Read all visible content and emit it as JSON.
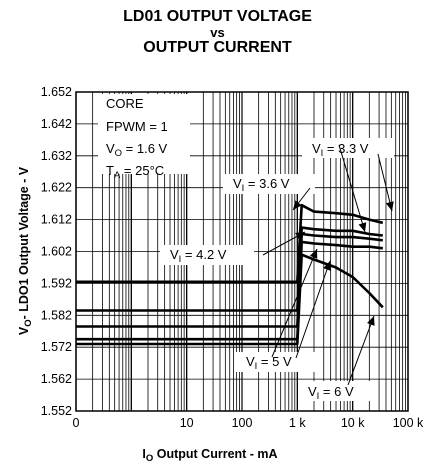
{
  "chart_data": {
    "type": "line",
    "title_line1": "LD01 OUTPUT VOLTAGE",
    "title_line2": "vs",
    "title_line3": "OUTPUT CURRENT",
    "xlabel": {
      "main": "I",
      "sub": "O",
      "rest": " Output Current - mA"
    },
    "ylabel": {
      "main": "V",
      "sub": "O",
      "rest": "- LDO1 Output Voltage - V"
    },
    "x_scale": "log",
    "xlim": [
      0.1,
      100000
    ],
    "ylim": [
      1.552,
      1.652
    ],
    "grid": true,
    "x_ticks": [
      {
        "value": 0.1,
        "label": "0"
      },
      {
        "value": 10,
        "label": "10"
      },
      {
        "value": 100,
        "label": "100"
      },
      {
        "value": 1000,
        "label": "1 k"
      },
      {
        "value": 10000,
        "label": "10 k"
      },
      {
        "value": 100000,
        "label": "100 k"
      }
    ],
    "y_ticks": [
      "1.552",
      "1.562",
      "1.572",
      "1.582",
      "1.592",
      "1.602",
      "1.612",
      "1.622",
      "1.632",
      "1.642",
      "1.652"
    ],
    "conditions": [
      {
        "text": "CORE"
      },
      {
        "text": "FPWM = 1"
      },
      {
        "main": "V",
        "sub": "O",
        "rest": " = 1.6 V"
      },
      {
        "main": "T",
        "sub": "A",
        "rest": " = 25°C"
      }
    ],
    "series": [
      {
        "name": "V_I = 3.3 V",
        "label_main": "V",
        "label_sub": "I",
        "label_rest": " = 3.3 V",
        "x": [
          0.1,
          1,
          10,
          100,
          700,
          1000,
          1200,
          2000,
          5000,
          10000,
          20000,
          35000
        ],
        "y": [
          1.5925,
          1.5925,
          1.5925,
          1.5925,
          1.5925,
          1.5925,
          1.6165,
          1.6145,
          1.614,
          1.6135,
          1.612,
          1.611
        ]
      },
      {
        "name": "V_I = 3.6 V",
        "label_main": "V",
        "label_sub": "I",
        "label_rest": " = 3.6 V",
        "x": [
          0.1,
          1,
          10,
          100,
          700,
          1000,
          1200,
          2000,
          5000,
          10000,
          20000,
          35000
        ],
        "y": [
          1.5835,
          1.5835,
          1.5835,
          1.5835,
          1.5835,
          1.5835,
          1.6095,
          1.609,
          1.6085,
          1.6085,
          1.6075,
          1.607
        ]
      },
      {
        "name": "V_I = 4.2 V",
        "label_main": "V",
        "label_sub": "I",
        "label_rest": " = 4.2 V",
        "x": [
          0.1,
          1,
          10,
          100,
          700,
          1000,
          1200,
          2000,
          5000,
          10000,
          20000,
          35000
        ],
        "y": [
          1.5785,
          1.5785,
          1.5785,
          1.5785,
          1.5785,
          1.5785,
          1.6075,
          1.607,
          1.6065,
          1.6065,
          1.606,
          1.6055
        ]
      },
      {
        "name": "V_I = 5 V",
        "label_main": "V",
        "label_sub": "I",
        "label_rest": " = 5 V",
        "x": [
          0.1,
          1,
          10,
          100,
          700,
          1000,
          1200,
          2000,
          5000,
          10000,
          20000,
          35000
        ],
        "y": [
          1.5745,
          1.5745,
          1.5745,
          1.5745,
          1.5745,
          1.5745,
          1.605,
          1.6045,
          1.604,
          1.6035,
          1.6035,
          1.603
        ]
      },
      {
        "name": "V_I = 6 V",
        "label_main": "V",
        "label_sub": "I",
        "label_rest": " = 6 V",
        "x": [
          0.1,
          1,
          10,
          100,
          700,
          1000,
          1200,
          2000,
          5000,
          10000,
          20000,
          35000
        ],
        "y": [
          1.573,
          1.573,
          1.573,
          1.573,
          1.573,
          1.573,
          1.601,
          1.5995,
          1.597,
          1.594,
          1.589,
          1.5845
        ]
      }
    ]
  }
}
